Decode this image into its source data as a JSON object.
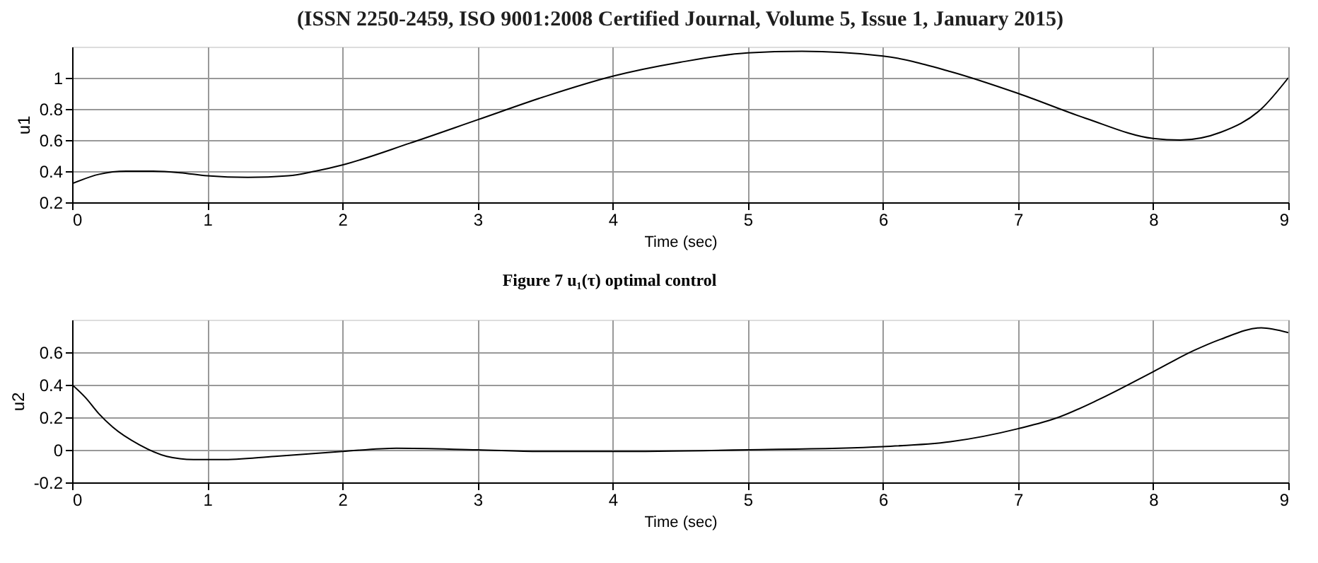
{
  "chart_data": [
    {
      "type": "line",
      "xlabel": "Time (sec)",
      "ylabel": "u1",
      "xlim": [
        0,
        9
      ],
      "ylim": [
        0.2,
        1.2
      ],
      "xticks": [
        0,
        1,
        2,
        3,
        4,
        5,
        6,
        7,
        8,
        9
      ],
      "yticks": [
        0.2,
        0.4,
        0.6,
        0.8,
        1
      ],
      "grid": true,
      "line_style": "solid",
      "annotations": [
        "(ISSN 2250-2459, ISO 9001:2008 Certified Journal, Volume 5, Issue 1, January 2015)",
        "Figure 7  u₁(τ) optimal  control"
      ],
      "series": [
        {
          "color": "#000000",
          "x": [
            0,
            0.2,
            0.4,
            0.6,
            0.8,
            1,
            1.3,
            1.6,
            1.8,
            2,
            2.5,
            3,
            3.5,
            4,
            4.5,
            5,
            5.4,
            6,
            6.5,
            7,
            7.5,
            8,
            8.2,
            8.5,
            8.8,
            9
          ],
          "values": [
            0.32,
            0.38,
            0.4,
            0.4,
            0.39,
            0.37,
            0.36,
            0.37,
            0.4,
            0.44,
            0.58,
            0.73,
            0.88,
            1.01,
            1.1,
            1.16,
            1.17,
            1.14,
            1.04,
            0.9,
            0.74,
            0.61,
            0.6,
            0.65,
            0.8,
            1.0
          ]
        }
      ]
    },
    {
      "type": "line",
      "xlabel": "Time (sec)",
      "ylabel": "u2",
      "xlim": [
        0,
        9
      ],
      "ylim": [
        -0.2,
        0.8
      ],
      "xticks": [
        0,
        1,
        2,
        3,
        4,
        5,
        6,
        7,
        8,
        9
      ],
      "yticks": [
        -0.2,
        0,
        0.2,
        0.4,
        0.6
      ],
      "grid": true,
      "line_style": "solid",
      "series": [
        {
          "color": "#000000",
          "x": [
            0,
            0.1,
            0.2,
            0.3,
            0.5,
            0.7,
            0.9,
            1.1,
            1.5,
            2,
            2.4,
            3,
            3.5,
            4,
            5,
            6,
            6.5,
            7,
            7.3,
            7.6,
            8,
            8.3,
            8.5,
            8.8,
            9
          ],
          "values": [
            0.4,
            0.32,
            0.22,
            0.14,
            0.03,
            -0.04,
            -0.06,
            -0.06,
            -0.04,
            -0.01,
            0.01,
            0.0,
            -0.01,
            -0.01,
            0.0,
            0.02,
            0.05,
            0.13,
            0.2,
            0.31,
            0.48,
            0.61,
            0.68,
            0.75,
            0.72
          ]
        }
      ]
    }
  ]
}
